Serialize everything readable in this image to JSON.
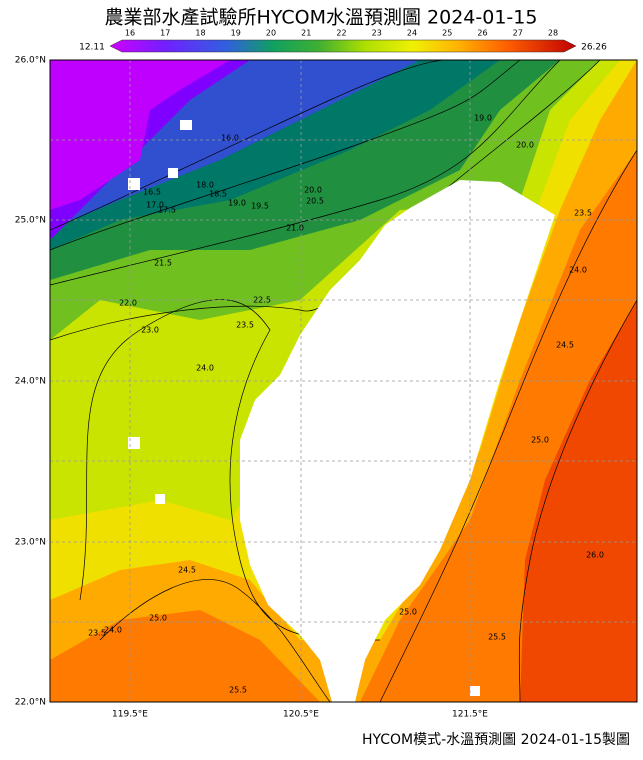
{
  "header": {
    "title": "農業部水產試驗所HYCOM水溫預測圖 2024-01-15"
  },
  "colorbar": {
    "min_label": "12.11",
    "max_label": "26.26",
    "ticks": [
      "16",
      "17",
      "18",
      "19",
      "20",
      "21",
      "22",
      "23",
      "24",
      "25",
      "26",
      "27",
      "28"
    ]
  },
  "axes": {
    "lat_labels": [
      "26.0°N",
      "25.0°N",
      "24.0°N",
      "23.0°N",
      "22.0°N"
    ],
    "lon_labels": [
      "119.5°E",
      "120.5°E",
      "121.5°E"
    ]
  },
  "contour_labels": [
    "16.0",
    "16.5",
    "17.0",
    "17.5",
    "18.0",
    "18.5",
    "19.0",
    "19.5",
    "20.0",
    "20.5",
    "21.0",
    "21.5",
    "22.0",
    "22.5",
    "23.0",
    "23.5",
    "24.0",
    "24.5",
    "25.0",
    "23.5",
    "24.0",
    "25.5",
    "25.0",
    "25.5",
    "26.0",
    "25.0",
    "24.5",
    "24.0",
    "23.5",
    "19.0",
    "20.0"
  ],
  "footer": "HYCOM模式-水溫預測圖 2024-01-15製圖"
}
